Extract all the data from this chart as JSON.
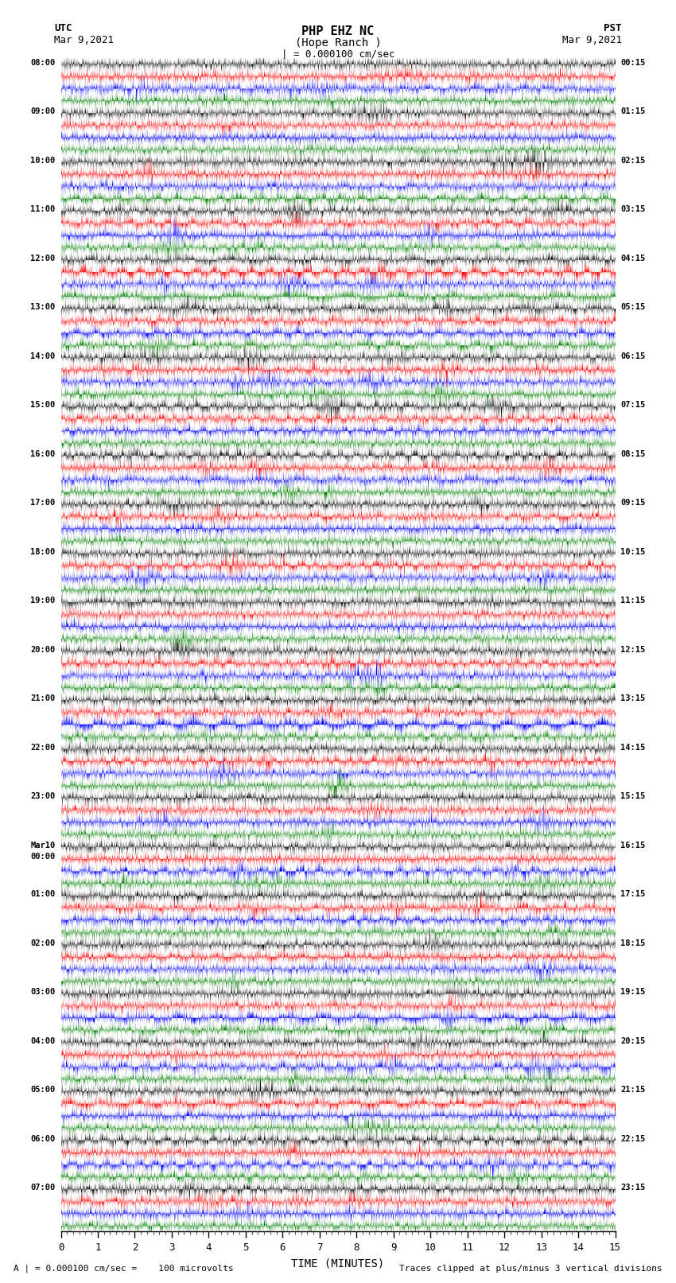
{
  "title_line1": "PHP EHZ NC",
  "title_line2": "(Hope Ranch )",
  "title_scale": "| = 0.000100 cm/sec",
  "utc_label": "UTC",
  "utc_date": "Mar 9,2021",
  "pst_label": "PST",
  "pst_date": "Mar 9,2021",
  "xlabel": "TIME (MINUTES)",
  "footer_left": "A | = 0.000100 cm/sec =    100 microvolts",
  "footer_right": "Traces clipped at plus/minus 3 vertical divisions",
  "trace_colors": [
    "black",
    "red",
    "blue",
    "green"
  ],
  "num_rows": 24,
  "left_times_utc": [
    "08:00",
    "09:00",
    "10:00",
    "11:00",
    "12:00",
    "13:00",
    "14:00",
    "15:00",
    "16:00",
    "17:00",
    "18:00",
    "19:00",
    "20:00",
    "21:00",
    "22:00",
    "23:00",
    "Mar10\n00:00",
    "01:00",
    "02:00",
    "03:00",
    "04:00",
    "05:00",
    "06:00",
    "07:00"
  ],
  "right_times_pst": [
    "00:15",
    "01:15",
    "02:15",
    "03:15",
    "04:15",
    "05:15",
    "06:15",
    "07:15",
    "08:15",
    "09:15",
    "10:15",
    "11:15",
    "12:15",
    "13:15",
    "14:15",
    "15:15",
    "16:15",
    "17:15",
    "18:15",
    "19:15",
    "20:15",
    "21:15",
    "22:15",
    "23:15"
  ],
  "bg_color": "white",
  "noise_seed": 42
}
